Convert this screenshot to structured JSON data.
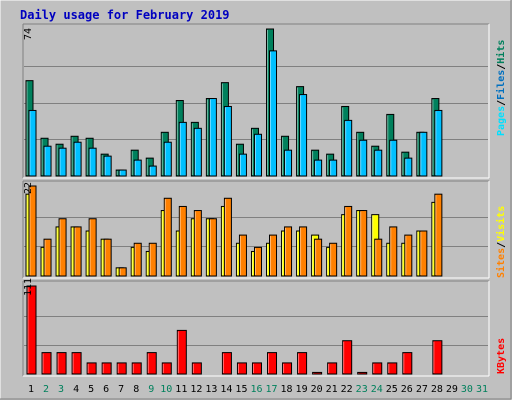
{
  "title": "Daily usage for February 2019",
  "colors": {
    "background": "#c0c0c0",
    "title": "#0000c0",
    "hits": "#00805c",
    "files": "#00c0ff",
    "pages": "#00e0ff",
    "visits": "#ffff00",
    "sites": "#ff8000",
    "kbytes": "#ff0000",
    "weekend": "#00805c",
    "weekday": "#000000"
  },
  "panel_labels": {
    "top": [
      "Pages",
      "/",
      "Files",
      "/",
      "Hits"
    ],
    "mid": [
      "Sites",
      "/",
      "Visits"
    ],
    "bot": [
      "KBytes"
    ]
  },
  "chart_data": [
    {
      "type": "bar",
      "panel": "top",
      "ymax_label": "74",
      "ylim": [
        0,
        74
      ],
      "x": [
        "1",
        "2",
        "3",
        "4",
        "5",
        "6",
        "7",
        "8",
        "9",
        "10",
        "11",
        "12",
        "13",
        "14",
        "15",
        "16",
        "17",
        "18",
        "19",
        "20",
        "21",
        "22",
        "23",
        "24",
        "25",
        "26",
        "27",
        "28",
        "29",
        "30",
        "31"
      ],
      "series": [
        {
          "name": "Hits",
          "values": [
            48,
            19,
            16,
            20,
            19,
            11,
            3,
            13,
            9,
            22,
            38,
            27,
            39,
            47,
            16,
            24,
            74,
            20,
            45,
            13,
            11,
            35,
            22,
            15,
            31,
            12,
            22,
            39,
            0,
            0,
            0
          ]
        },
        {
          "name": "Files",
          "values": [
            33,
            15,
            14,
            17,
            14,
            10,
            3,
            8,
            5,
            17,
            27,
            24,
            39,
            35,
            11,
            21,
            63,
            13,
            41,
            8,
            8,
            28,
            18,
            13,
            18,
            9,
            22,
            33,
            0,
            0,
            0
          ]
        },
        {
          "name": "Pages",
          "values": [
            33,
            15,
            14,
            17,
            14,
            10,
            3,
            8,
            5,
            17,
            27,
            24,
            39,
            35,
            11,
            21,
            63,
            13,
            41,
            8,
            8,
            28,
            18,
            13,
            18,
            9,
            22,
            33,
            0,
            0,
            0
          ]
        }
      ]
    },
    {
      "type": "bar",
      "panel": "middle",
      "ymax_label": "22",
      "ylim": [
        0,
        22
      ],
      "x": [
        "1",
        "2",
        "3",
        "4",
        "5",
        "6",
        "7",
        "8",
        "9",
        "10",
        "11",
        "12",
        "13",
        "14",
        "15",
        "16",
        "17",
        "18",
        "19",
        "20",
        "21",
        "22",
        "23",
        "24",
        "25",
        "26",
        "27",
        "28",
        "29",
        "30",
        "31"
      ],
      "series": [
        {
          "name": "Visits",
          "values": [
            20,
            7,
            12,
            12,
            11,
            9,
            2,
            7,
            6,
            16,
            11,
            14,
            14,
            17,
            8,
            6,
            8,
            11,
            11,
            10,
            7,
            15,
            16,
            15,
            8,
            8,
            11,
            18,
            0,
            0,
            0
          ]
        },
        {
          "name": "Sites",
          "values": [
            22,
            9,
            14,
            12,
            14,
            9,
            2,
            8,
            8,
            19,
            17,
            16,
            14,
            19,
            10,
            7,
            10,
            12,
            12,
            9,
            8,
            17,
            16,
            9,
            12,
            10,
            11,
            20,
            0,
            0,
            0
          ]
        }
      ]
    },
    {
      "type": "bar",
      "panel": "bottom",
      "ymax_label": "111",
      "ylim": [
        0,
        111
      ],
      "x": [
        "1",
        "2",
        "3",
        "4",
        "5",
        "6",
        "7",
        "8",
        "9",
        "10",
        "11",
        "12",
        "13",
        "14",
        "15",
        "16",
        "17",
        "18",
        "19",
        "20",
        "21",
        "22",
        "23",
        "24",
        "25",
        "26",
        "27",
        "28",
        "29",
        "30",
        "31"
      ],
      "series": [
        {
          "name": "KBytes",
          "values": [
            111,
            27,
            27,
            27,
            14,
            14,
            14,
            14,
            27,
            14,
            55,
            14,
            0,
            27,
            14,
            14,
            27,
            14,
            27,
            2,
            14,
            42,
            2,
            14,
            14,
            27,
            0,
            42,
            0,
            0,
            0
          ]
        }
      ]
    }
  ],
  "weekend_days": [
    "2",
    "3",
    "9",
    "10",
    "16",
    "17",
    "23",
    "24",
    "30",
    "31"
  ]
}
